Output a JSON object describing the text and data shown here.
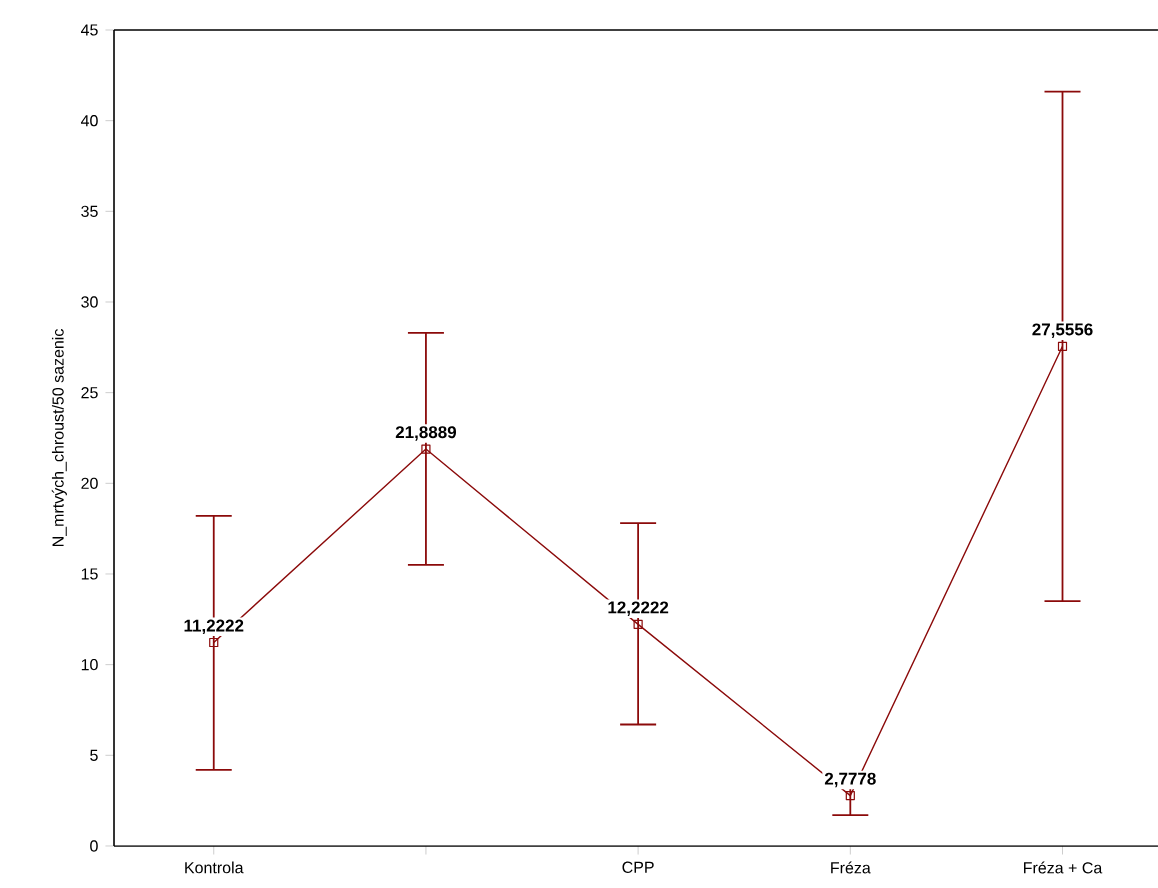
{
  "chart_data": {
    "type": "line",
    "ylabel": "N_mrtvých_chroust/50 sazenic",
    "categories": [
      "Kontrola",
      null,
      "CPP",
      "Fréza",
      "Fréza + Ca"
    ],
    "series": [
      {
        "color": "#8b0a0a",
        "values": [
          11.2222,
          21.8889,
          12.2222,
          2.7778,
          27.5556
        ],
        "errors": [
          [
            4.2,
            18.2
          ],
          [
            15.5,
            28.3
          ],
          [
            6.7,
            17.8
          ],
          [
            1.7,
            3.9
          ],
          [
            13.5,
            41.6
          ]
        ],
        "value_labels": [
          "11,2222",
          "21,8889",
          "12,2222",
          "2,7778",
          "27,5556"
        ]
      }
    ],
    "ylim": [
      0,
      45
    ],
    "yticks": [
      0,
      5,
      10,
      15,
      20,
      25,
      30,
      35,
      40,
      45
    ],
    "marker": "square",
    "line_style": "solid",
    "grid": false
  }
}
